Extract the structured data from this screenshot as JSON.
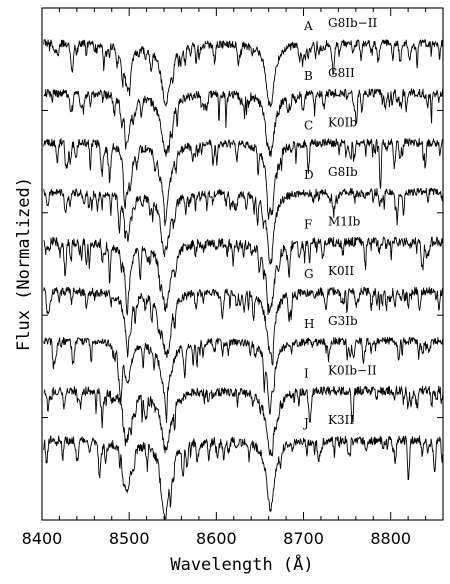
{
  "chart_data": {
    "type": "line",
    "xlabel": "Wavelength (Å)",
    "ylabel": "Flux (Normalized)",
    "xlim": [
      8400,
      8860
    ],
    "xticks": [
      8400,
      8500,
      8600,
      8700,
      8800
    ],
    "xtick_labels": [
      "8400",
      "8500",
      "8600",
      "8700",
      "8800"
    ],
    "y_ticks_labeled": false,
    "grid": false,
    "ca_triplet_lines": [
      8498,
      8542,
      8662
    ],
    "series": [
      {
        "letter": "A",
        "type": "G8Ib−II",
        "continuum": 9.0,
        "line_depth": 0.9,
        "noise": 0.25
      },
      {
        "letter": "B",
        "type": "G8II",
        "continuum": 8.0,
        "line_depth": 0.9,
        "noise": 0.28
      },
      {
        "letter": "C",
        "type": "K0Ib",
        "continuum": 7.0,
        "line_depth": 0.95,
        "noise": 0.28
      },
      {
        "letter": "D",
        "type": "G8Ib",
        "continuum": 6.0,
        "line_depth": 0.85,
        "noise": 0.26
      },
      {
        "letter": "F",
        "type": "M1Ib",
        "continuum": 5.0,
        "line_depth": 1.0,
        "noise": 0.32
      },
      {
        "letter": "G",
        "type": "K0II",
        "continuum": 4.0,
        "line_depth": 0.9,
        "noise": 0.28
      },
      {
        "letter": "H",
        "type": "G3Ib",
        "continuum": 3.0,
        "line_depth": 0.85,
        "noise": 0.25
      },
      {
        "letter": "I",
        "type": "K0Ib−II",
        "continuum": 2.0,
        "line_depth": 0.9,
        "noise": 0.3
      },
      {
        "letter": "J",
        "type": "K3II",
        "continuum": 1.0,
        "line_depth": 1.0,
        "noise": 0.3
      }
    ]
  }
}
